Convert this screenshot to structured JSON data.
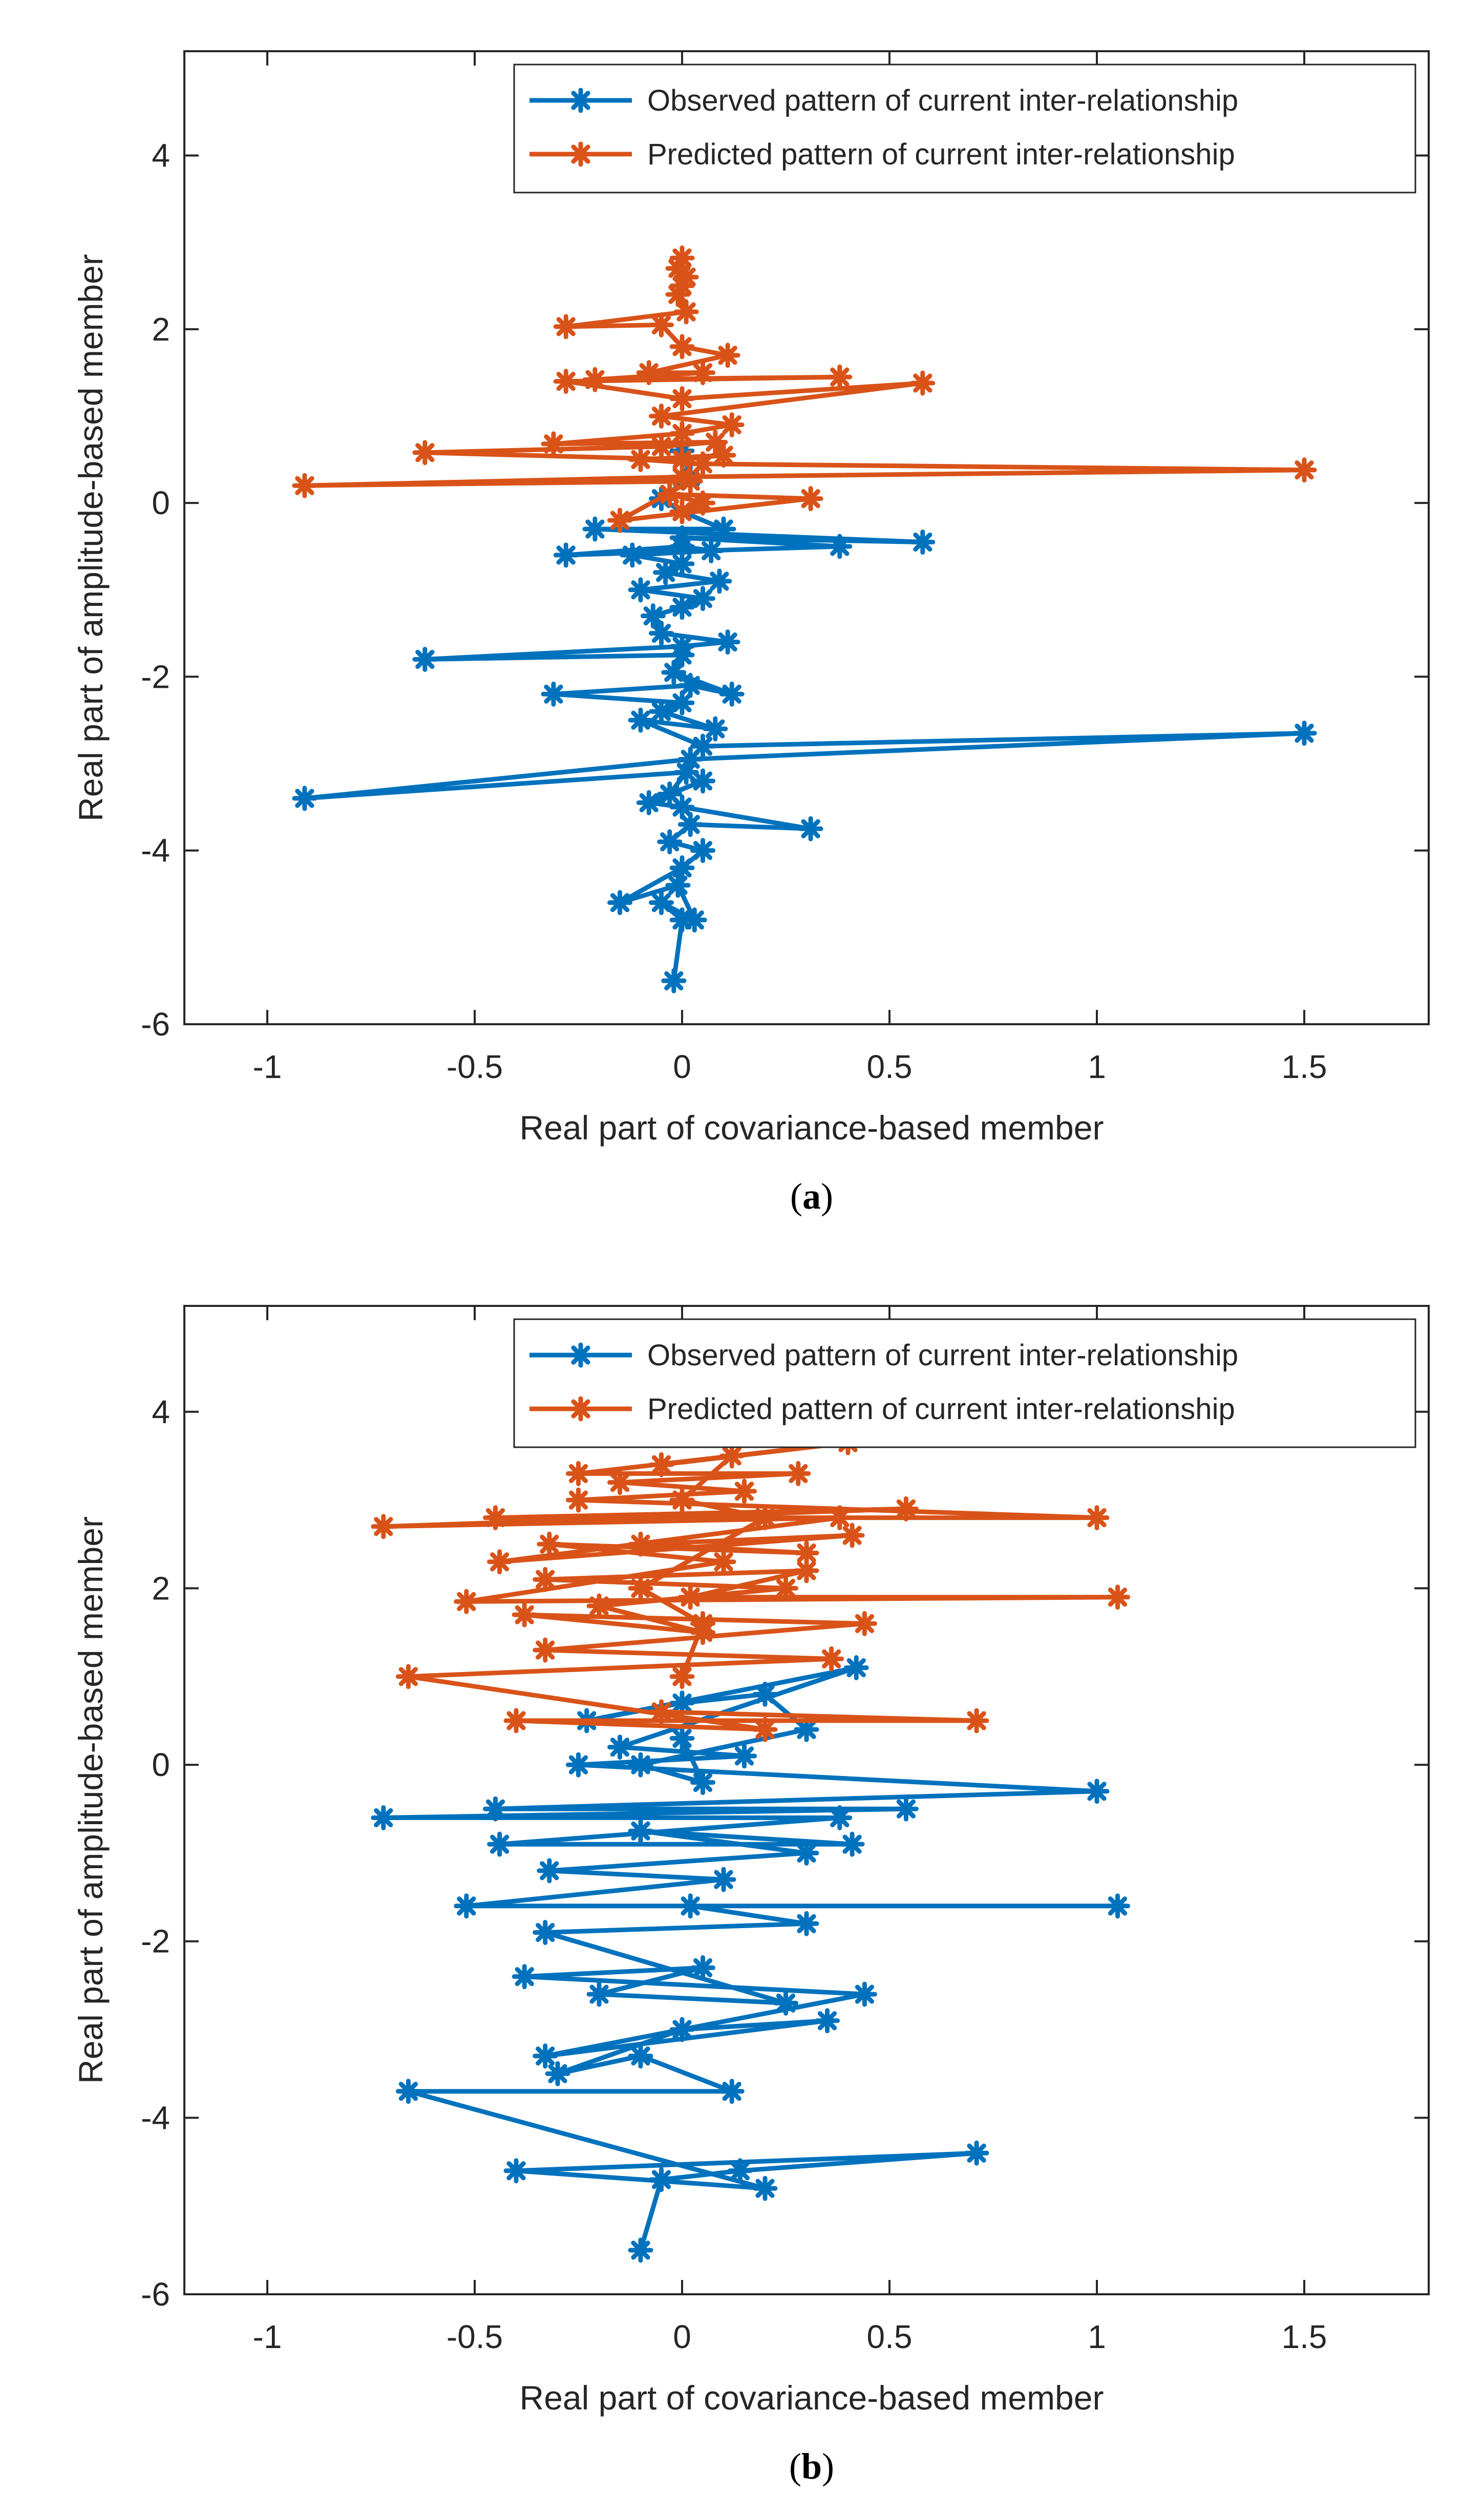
{
  "chart_data": [
    {
      "type": "line",
      "panel": "a",
      "caption": {
        "open": "(",
        "letter": "a",
        "close": ")"
      },
      "title": "",
      "xlabel": "Real part of covariance-based member",
      "ylabel": "Real part of amplitude-based member",
      "xlim": [
        -1.2,
        1.8
      ],
      "ylim": [
        -6,
        5.2
      ],
      "xticks": [
        -1,
        -0.5,
        0,
        0.5,
        1,
        1.5
      ],
      "xtick_labels": [
        "-1",
        "-0.5",
        "0",
        "0.5",
        "1",
        "1.5"
      ],
      "yticks": [
        -6,
        -4,
        -2,
        0,
        2,
        4
      ],
      "ytick_labels": [
        "-6",
        "-4",
        "-2",
        "0",
        "2",
        "4"
      ],
      "grid": false,
      "legend_position": "top-right",
      "series": [
        {
          "name": "Observed pattern of current inter-relationship",
          "color": "#0072BD",
          "x": [
            -0.02,
            0.0,
            -0.05,
            0.03,
            -0.01,
            -0.15,
            0.0,
            0.05,
            -0.03,
            0.02,
            0.31,
            0.0,
            -0.08,
            0.05,
            -0.03,
            0.01,
            -0.91,
            0.02,
            1.5,
            0.05,
            -0.1,
            0.08,
            -0.05,
            0.0,
            -0.31,
            0.02,
            0.12,
            -0.02,
            0.0,
            -0.62,
            0.0,
            0.11,
            -0.05,
            -0.07,
            0.0,
            0.05,
            -0.1,
            0.09,
            -0.04,
            0.0,
            -0.12,
            0.07,
            0.0,
            -0.28,
            0.38,
            0.0,
            0.58,
            -0.21,
            0.1,
            0.0,
            -0.05,
            0.02,
            0.0
          ],
          "y": [
            -5.5,
            -4.8,
            -4.6,
            -4.8,
            -4.4,
            -4.6,
            -4.2,
            -4.0,
            -3.9,
            -3.7,
            -3.75,
            -3.5,
            -3.45,
            -3.2,
            -3.35,
            -3.1,
            -3.4,
            -2.95,
            -2.65,
            -2.8,
            -2.5,
            -2.6,
            -2.4,
            -2.3,
            -2.2,
            -2.1,
            -2.2,
            -1.95,
            -1.75,
            -1.8,
            -1.65,
            -1.6,
            -1.5,
            -1.3,
            -1.2,
            -1.1,
            -1.0,
            -0.9,
            -0.8,
            -0.7,
            -0.6,
            -0.55,
            -0.5,
            -0.6,
            -0.5,
            -0.4,
            -0.45,
            -0.3,
            -0.3,
            -0.1,
            0.05,
            0.3,
            0.6
          ]
        },
        {
          "name": "Predicted pattern of current inter-relationship",
          "color": "#D95319",
          "x": [
            0.0,
            0.05,
            -0.03,
            0.31,
            -0.15,
            0.02,
            -0.91,
            0.0,
            1.5,
            0.05,
            -0.1,
            0.1,
            0.0,
            -0.62,
            -0.05,
            0.08,
            -0.31,
            0.0,
            0.12,
            -0.05,
            0.58,
            0.0,
            -0.28,
            0.38,
            -0.21,
            0.05,
            -0.08,
            0.11,
            0.0,
            -0.05,
            -0.28,
            0.01,
            -0.01,
            0.0,
            0.01,
            -0.01,
            0.0
          ],
          "y": [
            -0.1,
            0.0,
            0.1,
            0.05,
            -0.2,
            0.25,
            0.2,
            0.3,
            0.38,
            0.45,
            0.5,
            0.55,
            0.5,
            0.58,
            0.65,
            0.7,
            0.68,
            0.8,
            0.9,
            1.0,
            1.38,
            1.2,
            1.4,
            1.45,
            1.42,
            1.5,
            1.5,
            1.7,
            1.8,
            2.05,
            2.03,
            2.2,
            2.4,
            2.5,
            2.6,
            2.7,
            2.82
          ]
        }
      ]
    },
    {
      "type": "line",
      "panel": "b",
      "caption": {
        "open": "(",
        "letter": "b",
        "close": ")"
      },
      "title": "",
      "xlabel": "Real part of covariance-based member",
      "ylabel": "Real part of amplitude-based member",
      "xlim": [
        -1.2,
        1.8
      ],
      "ylim": [
        -6,
        5.2
      ],
      "xticks": [
        -1,
        -0.5,
        0,
        0.5,
        1,
        1.5
      ],
      "xtick_labels": [
        "-1",
        "-0.5",
        "0",
        "0.5",
        "1",
        "1.5"
      ],
      "yticks": [
        -6,
        -4,
        -2,
        0,
        2,
        4
      ],
      "ytick_labels": [
        "-6",
        "-4",
        "-2",
        "0",
        "2",
        "4"
      ],
      "grid": false,
      "legend_position": "top-right",
      "series": [
        {
          "name": "Observed pattern of current inter-relationship",
          "color": "#0072BD",
          "x": [
            -0.1,
            -0.05,
            0.14,
            0.71,
            -0.4,
            0.2,
            -0.66,
            0.12,
            -0.1,
            -0.3,
            0.0,
            0.35,
            -0.33,
            0.44,
            -0.38,
            0.05,
            -0.2,
            0.25,
            -0.33,
            0.3,
            0.02,
            1.05,
            -0.52,
            0.1,
            -0.32,
            0.3,
            -0.1,
            0.41,
            -0.44,
            0.38,
            -0.72,
            0.54,
            -0.45,
            1.0,
            -0.25,
            0.15,
            -0.15,
            0.42,
            -0.23,
            0.0,
            0.2,
            0.3,
            -0.1,
            0.05,
            0.0
          ],
          "y": [
            -5.5,
            -4.7,
            -4.6,
            -4.4,
            -4.6,
            -4.8,
            -3.7,
            -3.7,
            -3.3,
            -3.5,
            -3.0,
            -2.9,
            -3.3,
            -2.6,
            -2.4,
            -2.3,
            -2.6,
            -2.7,
            -1.9,
            -1.8,
            -1.6,
            -1.6,
            -1.6,
            -1.3,
            -1.2,
            -1.0,
            -0.75,
            -0.9,
            -0.9,
            -0.6,
            -0.6,
            -0.5,
            -0.5,
            -0.3,
            0.0,
            0.1,
            0.2,
            1.1,
            0.5,
            0.7,
            0.8,
            0.4,
            0.0,
            -0.2,
            0.3
          ]
        },
        {
          "name": "Predicted pattern of current inter-relationship",
          "color": "#D95319",
          "x": [
            -0.05,
            0.71,
            -0.4,
            0.2,
            -0.66,
            0.36,
            -0.33,
            0.44,
            -0.38,
            0.05,
            -0.2,
            0.25,
            -0.33,
            0.3,
            0.02,
            1.05,
            -0.52,
            0.1,
            -0.32,
            0.3,
            -0.1,
            0.41,
            -0.44,
            0.38,
            -0.72,
            0.54,
            -0.45,
            1.0,
            -0.25,
            0.15,
            -0.15,
            0.28,
            -0.25,
            0.4,
            -0.05,
            0.12,
            0.0,
            0.2,
            -0.1,
            0.05,
            0.0
          ],
          "y": [
            0.6,
            0.5,
            0.5,
            0.4,
            1.0,
            1.2,
            1.3,
            1.6,
            1.7,
            1.5,
            1.8,
            2.0,
            2.1,
            2.2,
            1.9,
            1.9,
            1.85,
            2.3,
            2.5,
            2.4,
            2.5,
            2.6,
            2.3,
            2.8,
            2.7,
            2.9,
            2.8,
            2.8,
            3.0,
            3.1,
            3.2,
            3.3,
            3.3,
            3.65,
            3.4,
            3.5,
            3.0,
            2.8,
            2.0,
            1.6,
            1.0
          ]
        }
      ]
    }
  ]
}
